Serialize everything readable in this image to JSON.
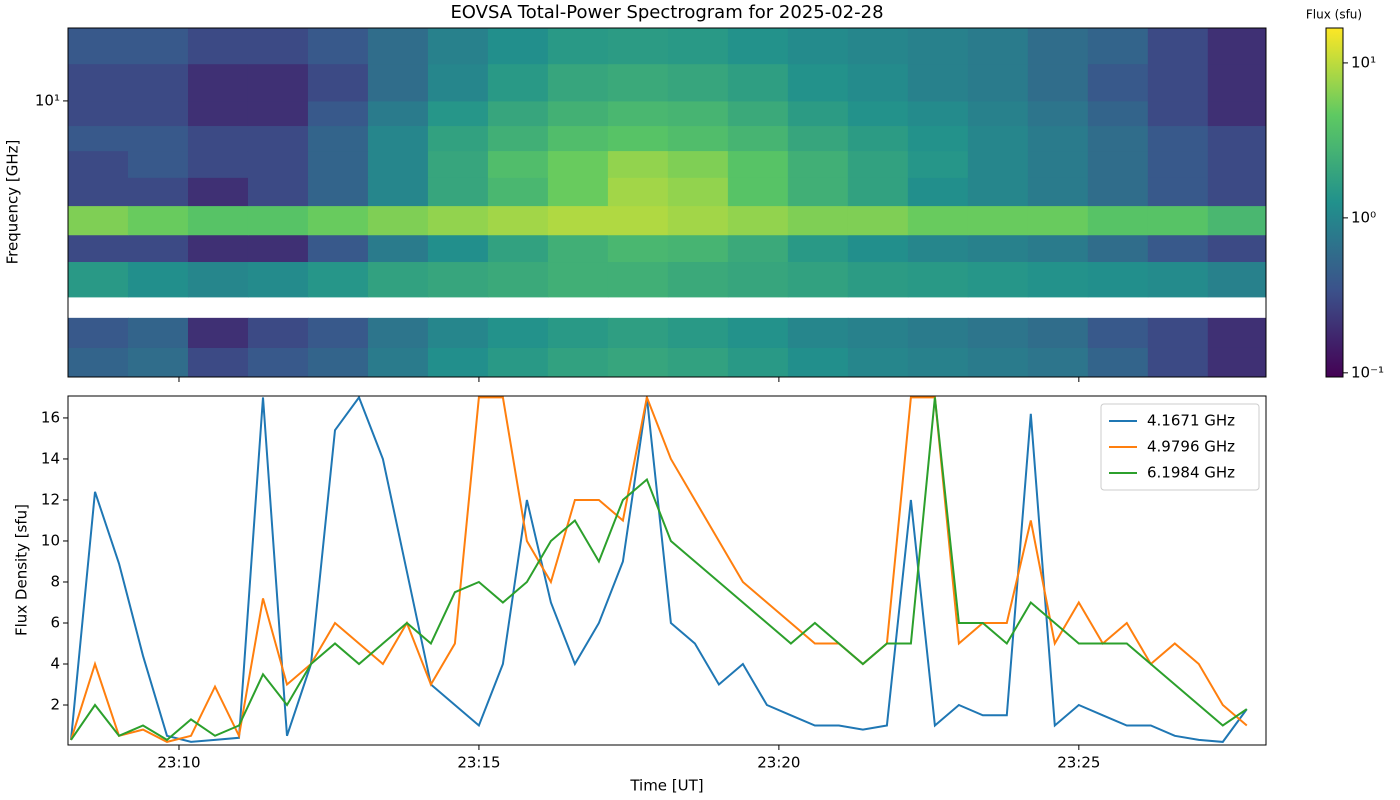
{
  "chart_data": [
    {
      "type": "heatmap",
      "title": "EOVSA Total-Power Spectrogram for 2025-02-28",
      "ylabel": "Frequency [GHz]",
      "yscale": "log",
      "xlim": [
        8.15,
        28.12
      ],
      "xticks": [
        10,
        15,
        20,
        25
      ],
      "ylim": [
        1.08,
        18
      ],
      "yticks": [
        {
          "value": 10,
          "label": "10¹"
        }
      ],
      "time_edges": [
        8.15,
        9.15,
        10.15,
        11.15,
        12.15,
        13.15,
        14.15,
        15.15,
        16.15,
        17.15,
        18.15,
        19.15,
        20.15,
        21.15,
        22.15,
        23.15,
        24.15,
        25.15,
        26.15,
        27.15,
        28.12
      ],
      "freq_edges": [
        1.08,
        1.37,
        1.74,
        2.06,
        2.74,
        3.4,
        4.3,
        5.4,
        6.7,
        8.2,
        10,
        13.5,
        18
      ],
      "values": [
        [
          0.5,
          0.6,
          0.3,
          0.4,
          0.5,
          0.8,
          1.2,
          1.5,
          1.8,
          2,
          1.8,
          1.5,
          1.2,
          1,
          0.9,
          0.8,
          0.7,
          0.5,
          0.3,
          0.2
        ],
        [
          0.4,
          0.5,
          0.2,
          0.3,
          0.4,
          0.7,
          1,
          1.3,
          1.5,
          1.7,
          1.5,
          1.3,
          1,
          0.9,
          0.8,
          0.7,
          0.6,
          0.4,
          0.3,
          0.2
        ],
        [
          null,
          null,
          null,
          null,
          null,
          null,
          null,
          null,
          null,
          null,
          null,
          null,
          null,
          null,
          null,
          null,
          null,
          null,
          null,
          null
        ],
        [
          1.5,
          1.2,
          1.0,
          1.1,
          1.4,
          1.8,
          2,
          2.2,
          2.5,
          2.5,
          2.2,
          2,
          1.8,
          1.6,
          1.5,
          1.4,
          1.3,
          1.2,
          1.1,
          0.9
        ],
        [
          0.3,
          0.3,
          0.2,
          0.2,
          0.4,
          0.8,
          1.2,
          1.8,
          2.5,
          3,
          2.8,
          2.2,
          1.5,
          1.2,
          1,
          0.9,
          0.8,
          0.6,
          0.4,
          0.3
        ],
        [
          6,
          5,
          4,
          4,
          5,
          6,
          7,
          8,
          9,
          9,
          8,
          7,
          6,
          6,
          5,
          5,
          5,
          4,
          4,
          3
        ],
        [
          0.3,
          0.3,
          0.2,
          0.3,
          0.5,
          1,
          2,
          3,
          5,
          8,
          7,
          4,
          2.5,
          1.8,
          1.2,
          1,
          0.8,
          0.6,
          0.4,
          0.3
        ],
        [
          0.3,
          0.4,
          0.3,
          0.3,
          0.5,
          1,
          2,
          3.5,
          5,
          7,
          6,
          4,
          2.5,
          1.8,
          1.4,
          1,
          0.8,
          0.6,
          0.4,
          0.3
        ],
        [
          0.4,
          0.4,
          0.3,
          0.3,
          0.5,
          1,
          1.8,
          2.5,
          3.5,
          4,
          3.5,
          2.8,
          2,
          1.6,
          1.3,
          1,
          0.8,
          0.6,
          0.4,
          0.3
        ],
        [
          0.3,
          0.3,
          0.2,
          0.2,
          0.4,
          0.8,
          1.4,
          2,
          2.6,
          3,
          2.8,
          2.2,
          1.6,
          1.3,
          1.1,
          0.9,
          0.7,
          0.5,
          0.3,
          0.2
        ],
        [
          0.3,
          0.3,
          0.2,
          0.2,
          0.3,
          0.6,
          1,
          1.5,
          2,
          2.2,
          2,
          1.7,
          1.3,
          1.1,
          0.9,
          0.8,
          0.6,
          0.4,
          0.3,
          0.2
        ],
        [
          0.4,
          0.4,
          0.3,
          0.3,
          0.4,
          0.6,
          0.9,
          1.2,
          1.5,
          1.6,
          1.5,
          1.3,
          1.1,
          1,
          0.9,
          0.8,
          0.6,
          0.5,
          0.3,
          0.2
        ]
      ],
      "colormap": "viridis",
      "colorbar": {
        "label": "Flux (sfu)",
        "scale": "log",
        "lim": [
          0.094,
          16.8
        ],
        "ticks": [
          {
            "value": 0.1,
            "label": "10⁻¹"
          },
          {
            "value": 1,
            "label": "10⁰"
          },
          {
            "value": 10,
            "label": "10¹"
          }
        ]
      }
    },
    {
      "type": "line",
      "xlabel": "Time [UT]",
      "ylabel": "Flux Density [sfu]",
      "xlim": [
        8.15,
        28.12
      ],
      "xticks": [
        {
          "value": 10,
          "label": "23:10"
        },
        {
          "value": 15,
          "label": "23:15"
        },
        {
          "value": 20,
          "label": "23:20"
        },
        {
          "value": 25,
          "label": "23:25"
        }
      ],
      "ylim": [
        0.05,
        17.07
      ],
      "yticks": [
        2,
        4,
        6,
        8,
        10,
        12,
        14,
        16
      ],
      "legend": "upper right",
      "x": [
        8.2,
        8.6,
        9.0,
        9.4,
        9.8,
        10.2,
        10.6,
        11.0,
        11.4,
        11.8,
        12.2,
        12.6,
        13.0,
        13.4,
        13.8,
        14.2,
        14.6,
        15.0,
        15.4,
        15.8,
        16.2,
        16.6,
        17.0,
        17.4,
        17.8,
        18.2,
        18.6,
        19.0,
        19.4,
        19.8,
        20.2,
        20.6,
        21.0,
        21.4,
        21.8,
        22.2,
        22.6,
        23.0,
        23.4,
        23.8,
        24.2,
        24.6,
        25.0,
        25.4,
        25.8,
        26.2,
        26.6,
        27.0,
        27.4,
        27.8
      ],
      "series": [
        {
          "name": "4.1671 GHz",
          "color": "#1f77b4",
          "values": [
            0.3,
            12.4,
            8.9,
            4.4,
            0.5,
            0.2,
            0.3,
            0.4,
            17,
            0.5,
            4,
            15.4,
            17,
            14,
            8.5,
            3,
            2,
            1,
            4,
            12,
            7,
            4,
            6,
            9,
            17,
            6,
            5,
            3,
            4,
            2,
            1.5,
            1,
            1,
            0.8,
            1,
            12,
            1,
            2,
            1.5,
            1.5,
            16.2,
            1,
            2,
            1.5,
            1,
            1,
            0.5,
            0.3,
            0.2,
            1.8
          ]
        },
        {
          "name": "4.9796 GHz",
          "color": "#ff7f0e",
          "values": [
            0.3,
            4,
            0.5,
            0.8,
            0.2,
            0.5,
            2.9,
            0.5,
            7.2,
            3,
            4,
            6,
            5,
            4,
            6,
            3,
            5,
            17,
            17,
            10,
            8,
            12,
            12,
            11,
            17,
            14,
            12,
            10,
            8,
            7,
            6,
            5,
            5,
            4,
            5,
            17,
            17,
            5,
            6,
            6,
            11,
            5,
            7,
            5,
            6,
            4,
            5,
            4,
            2,
            1
          ]
        },
        {
          "name": "6.1984 GHz",
          "color": "#2ca02c",
          "values": [
            0.3,
            2,
            0.5,
            1,
            0.3,
            1.3,
            0.5,
            1,
            3.5,
            2,
            4,
            5,
            4,
            5,
            6,
            5,
            7.5,
            8,
            7,
            8,
            10,
            11,
            9,
            12,
            13,
            10,
            9,
            8,
            7,
            6,
            5,
            6,
            5,
            4,
            5,
            5,
            17,
            6,
            6,
            5,
            7,
            6,
            5,
            5,
            5,
            4,
            3,
            2,
            1,
            1.8
          ]
        }
      ]
    }
  ]
}
